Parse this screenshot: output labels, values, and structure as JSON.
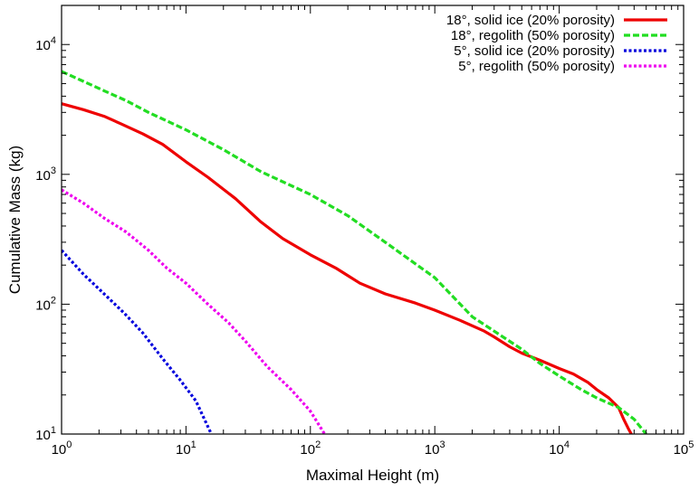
{
  "chart_data": {
    "type": "line",
    "title": "",
    "xlabel": "Maximal Height (m)",
    "ylabel": "Cumulative Mass (kg)",
    "xscale": "log",
    "yscale": "log",
    "xlim": [
      1,
      100000
    ],
    "ylim": [
      10,
      20000
    ],
    "x_ticks": [
      {
        "base": "10",
        "exp": "0"
      },
      {
        "base": "10",
        "exp": "1"
      },
      {
        "base": "10",
        "exp": "2"
      },
      {
        "base": "10",
        "exp": "3"
      },
      {
        "base": "10",
        "exp": "4"
      },
      {
        "base": "10",
        "exp": "5"
      }
    ],
    "y_ticks": [
      {
        "base": "10",
        "exp": "1"
      },
      {
        "base": "10",
        "exp": "2"
      },
      {
        "base": "10",
        "exp": "3"
      },
      {
        "base": "10",
        "exp": "4"
      }
    ],
    "legend_position": "top-right",
    "grid": false,
    "series": [
      {
        "name": "18°, solid ice (20% porosity)",
        "color": "#ee0000",
        "style": "solid",
        "points": [
          [
            1,
            3500
          ],
          [
            1.5,
            3150
          ],
          [
            2.2,
            2800
          ],
          [
            3,
            2450
          ],
          [
            4.5,
            2050
          ],
          [
            6.5,
            1700
          ],
          [
            10,
            1250
          ],
          [
            15,
            950
          ],
          [
            25,
            650
          ],
          [
            40,
            430
          ],
          [
            60,
            320
          ],
          [
            100,
            240
          ],
          [
            160,
            190
          ],
          [
            250,
            145
          ],
          [
            400,
            120
          ],
          [
            700,
            102
          ],
          [
            1000,
            90
          ],
          [
            1600,
            75
          ],
          [
            2500,
            62
          ],
          [
            3000,
            56
          ],
          [
            4000,
            47
          ],
          [
            5000,
            42
          ],
          [
            7000,
            37
          ],
          [
            10000,
            32
          ],
          [
            13000,
            29
          ],
          [
            17000,
            25
          ],
          [
            20000,
            22
          ],
          [
            25000,
            19
          ],
          [
            30000,
            16
          ],
          [
            33000,
            13
          ],
          [
            36000,
            11
          ],
          [
            38000,
            10
          ]
        ]
      },
      {
        "name": "18°, regolith (50% porosity)",
        "color": "#22dd22",
        "style": "dashed",
        "points": [
          [
            1,
            6200
          ],
          [
            1.5,
            5200
          ],
          [
            2.2,
            4400
          ],
          [
            3.3,
            3700
          ],
          [
            5,
            3000
          ],
          [
            10,
            2200
          ],
          [
            20,
            1550
          ],
          [
            40,
            1050
          ],
          [
            100,
            700
          ],
          [
            200,
            480
          ],
          [
            400,
            300
          ],
          [
            1000,
            160
          ],
          [
            2000,
            80
          ],
          [
            3000,
            62
          ],
          [
            5000,
            45
          ],
          [
            7000,
            35
          ],
          [
            10000,
            28
          ],
          [
            15000,
            22
          ],
          [
            20000,
            19
          ],
          [
            30000,
            16
          ],
          [
            40000,
            13
          ],
          [
            50000,
            10
          ]
        ]
      },
      {
        "name": "5°, solid ice (20% porosity)",
        "color": "#0000dd",
        "style": "dotted",
        "points": [
          [
            1,
            260
          ],
          [
            1.5,
            170
          ],
          [
            2.2,
            120
          ],
          [
            3.2,
            85
          ],
          [
            4.5,
            60
          ],
          [
            6.5,
            38
          ],
          [
            9,
            26
          ],
          [
            12,
            18
          ],
          [
            16,
            10
          ]
        ]
      },
      {
        "name": "5°, regolith (50% porosity)",
        "color": "#ee00ee",
        "style": "dotted",
        "points": [
          [
            1,
            760
          ],
          [
            1.5,
            600
          ],
          [
            2.2,
            460
          ],
          [
            3.3,
            360
          ],
          [
            5,
            260
          ],
          [
            7,
            190
          ],
          [
            10,
            145
          ],
          [
            15,
            100
          ],
          [
            22,
            72
          ],
          [
            30,
            52
          ],
          [
            45,
            33
          ],
          [
            70,
            22
          ],
          [
            100,
            15
          ],
          [
            130,
            10
          ]
        ]
      }
    ]
  }
}
